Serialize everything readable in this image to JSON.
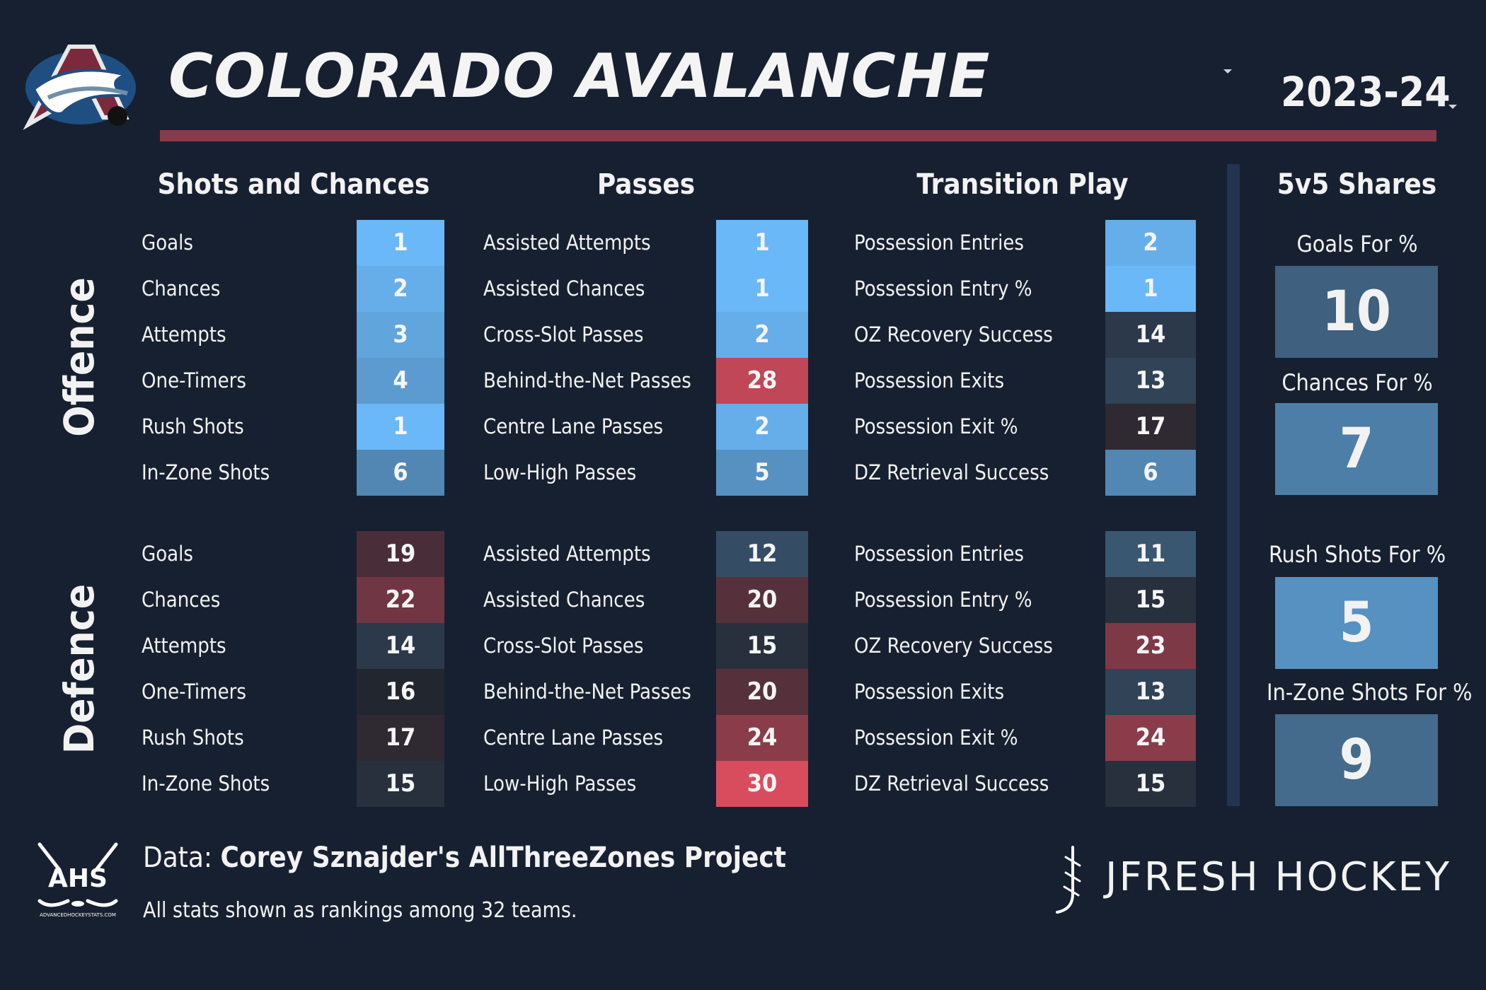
{
  "header": {
    "team_name": "COLORADO AVALANCHE",
    "season": "2023-24"
  },
  "columns": {
    "shots": "Shots and Chances",
    "passes": "Passes",
    "transition": "Transition Play",
    "shares": "5v5 Shares"
  },
  "sections": {
    "offence": {
      "label": "Offence",
      "shots": [
        {
          "label": "Goals",
          "rank": 1
        },
        {
          "label": "Chances",
          "rank": 2
        },
        {
          "label": "Attempts",
          "rank": 3
        },
        {
          "label": "One-Timers",
          "rank": 4
        },
        {
          "label": "Rush Shots",
          "rank": 1
        },
        {
          "label": "In-Zone Shots",
          "rank": 6
        }
      ],
      "passes": [
        {
          "label": "Assisted Attempts",
          "rank": 1
        },
        {
          "label": "Assisted Chances",
          "rank": 1
        },
        {
          "label": "Cross-Slot Passes",
          "rank": 2
        },
        {
          "label": "Behind-the-Net Passes",
          "rank": 28
        },
        {
          "label": "Centre Lane Passes",
          "rank": 2
        },
        {
          "label": "Low-High Passes",
          "rank": 5
        }
      ],
      "transition": [
        {
          "label": "Possession Entries",
          "rank": 2
        },
        {
          "label": "Possession Entry %",
          "rank": 1
        },
        {
          "label": "OZ Recovery Success",
          "rank": 14
        },
        {
          "label": "Possession Exits",
          "rank": 13
        },
        {
          "label": "Possession Exit %",
          "rank": 17
        },
        {
          "label": "DZ Retrieval Success",
          "rank": 6
        }
      ]
    },
    "defence": {
      "label": "Defence",
      "shots": [
        {
          "label": "Goals",
          "rank": 19
        },
        {
          "label": "Chances",
          "rank": 22
        },
        {
          "label": "Attempts",
          "rank": 14
        },
        {
          "label": "One-Timers",
          "rank": 16
        },
        {
          "label": "Rush Shots",
          "rank": 17
        },
        {
          "label": "In-Zone Shots",
          "rank": 15
        }
      ],
      "passes": [
        {
          "label": "Assisted Attempts",
          "rank": 12
        },
        {
          "label": "Assisted Chances",
          "rank": 20
        },
        {
          "label": "Cross-Slot Passes",
          "rank": 15
        },
        {
          "label": "Behind-the-Net Passes",
          "rank": 20
        },
        {
          "label": "Centre Lane Passes",
          "rank": 24
        },
        {
          "label": "Low-High Passes",
          "rank": 30
        }
      ],
      "transition": [
        {
          "label": "Possession Entries",
          "rank": 11
        },
        {
          "label": "Possession Entry %",
          "rank": 15
        },
        {
          "label": "OZ Recovery Success",
          "rank": 23
        },
        {
          "label": "Possession Exits",
          "rank": 13
        },
        {
          "label": "Possession Exit %",
          "rank": 24
        },
        {
          "label": "DZ Retrieval Success",
          "rank": 15
        }
      ]
    }
  },
  "shares": [
    {
      "label": "Goals For %",
      "rank": 10
    },
    {
      "label": "Chances For %",
      "rank": 7
    },
    {
      "label": "Rush Shots For %",
      "rank": 5
    },
    {
      "label": "In-Zone Shots For %",
      "rank": 9
    }
  ],
  "footer": {
    "source_prefix": "Data: ",
    "source_name": "Corey Sznajder's AllThreeZones Project",
    "note": "All stats shown as rankings among 32 teams.",
    "ahs_logo_text": "AHS",
    "ahs_logo_url_text": "ADVANCEDHOCKEYSTATS.COM",
    "brand": "JFRESH HOCKEY"
  },
  "colors": {
    "background": "#172030",
    "title_rule": "#8a3a4c",
    "rank_best": "#6ab8f7",
    "rank_mid": "#22262f",
    "rank_worst": "#d94c5e"
  }
}
